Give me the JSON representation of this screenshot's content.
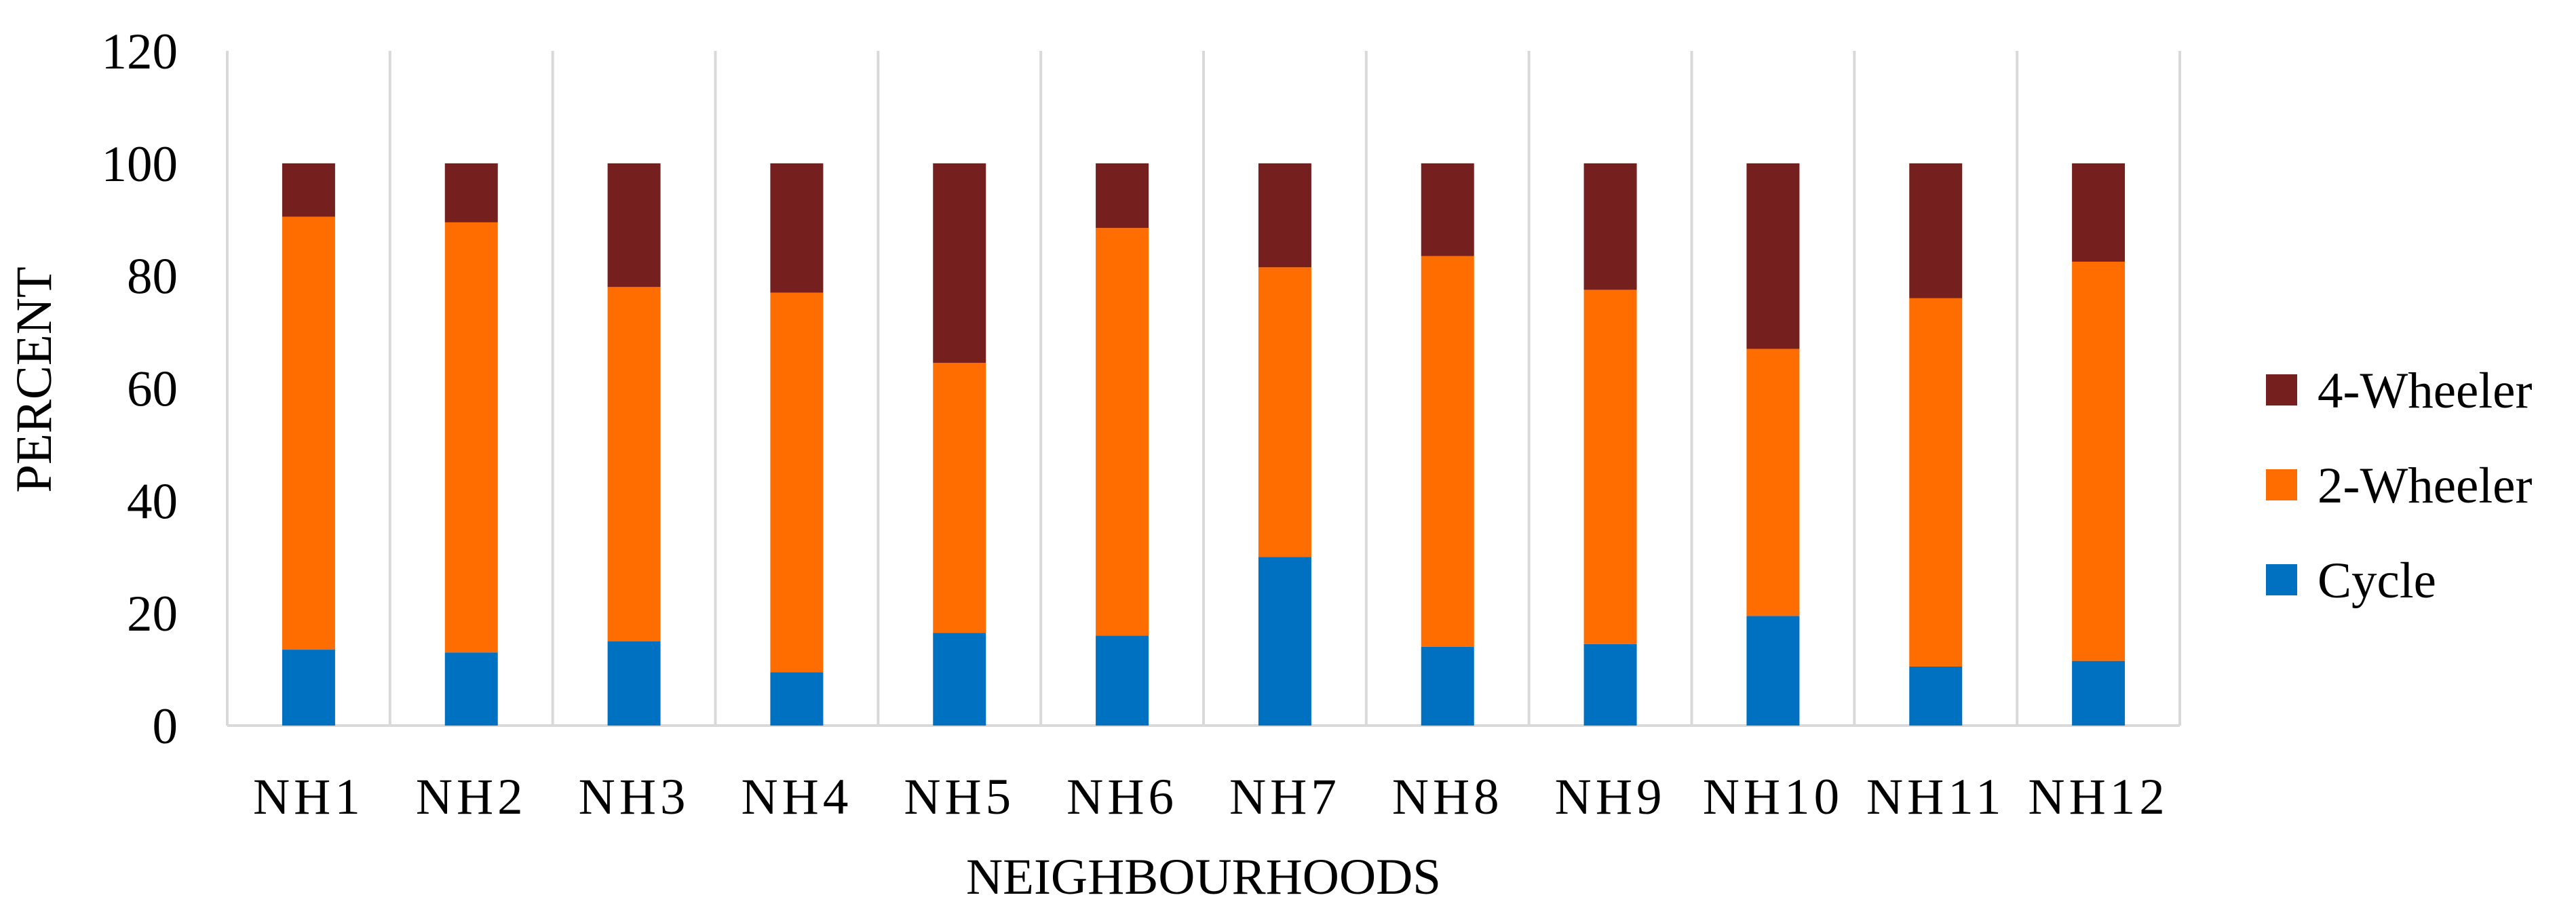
{
  "chart_data": {
    "type": "bar",
    "stacked": true,
    "title": "",
    "xlabel": "NEIGHBOURHOODS",
    "ylabel": "PERCENT",
    "ylim": [
      0,
      120
    ],
    "yticks": [
      0,
      20,
      40,
      60,
      80,
      100,
      120
    ],
    "grid": "vertical",
    "legend_position": "right",
    "categories": [
      "NH1",
      "NH2",
      "NH3",
      "NH4",
      "NH5",
      "NH6",
      "NH7",
      "NH8",
      "NH9",
      "NH10",
      "NH11",
      "NH12"
    ],
    "series": [
      {
        "name": "Cycle",
        "color": "#0070C0",
        "values": [
          13.5,
          13,
          15,
          9.5,
          16.5,
          16,
          30,
          14,
          14.5,
          19.5,
          10.5,
          11.5
        ]
      },
      {
        "name": "2-Wheeler",
        "color": "#FF6D00",
        "values": [
          77,
          76.5,
          63,
          67.5,
          48,
          72.5,
          51.5,
          69.5,
          63,
          47.5,
          65.5,
          71
        ]
      },
      {
        "name": "4-Wheeler",
        "color": "#751F1F",
        "values": [
          9.5,
          10.5,
          22,
          23,
          35.5,
          11.5,
          18.5,
          16.5,
          22.5,
          33,
          24,
          17.5
        ]
      }
    ]
  }
}
